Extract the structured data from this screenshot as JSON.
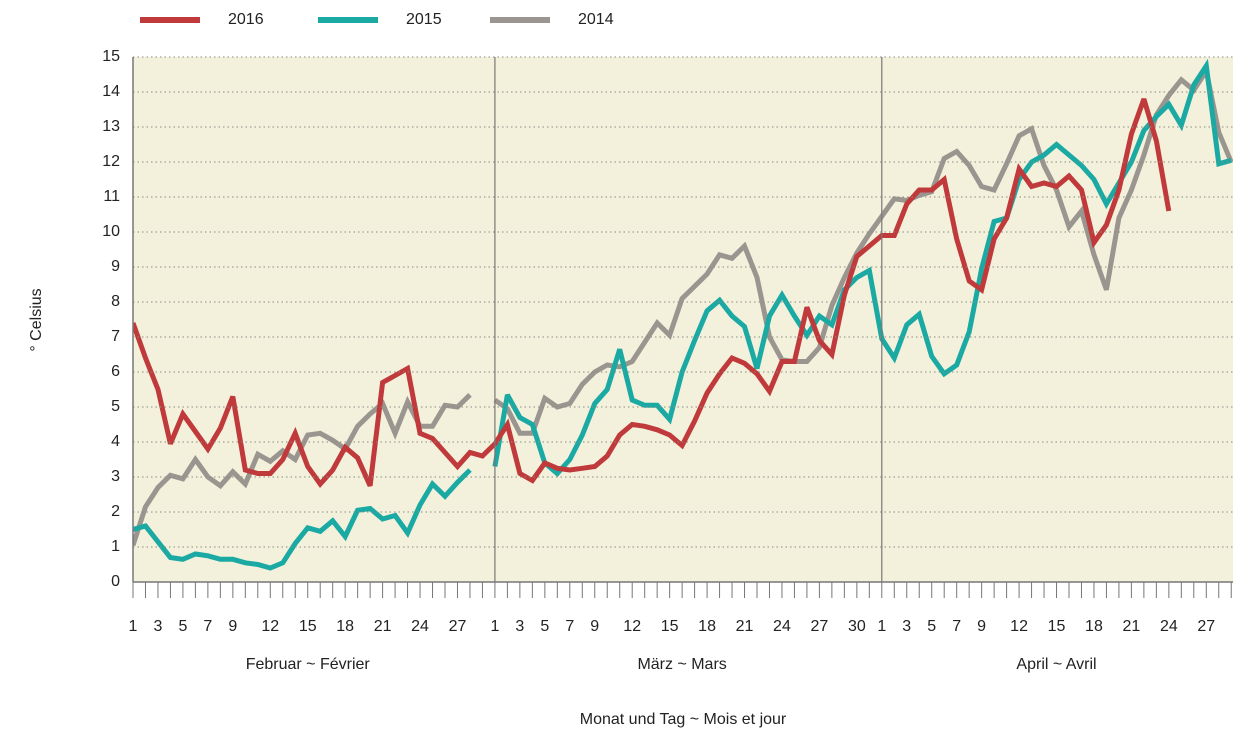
{
  "chart_data": {
    "type": "line",
    "ylabel": "° Celsius",
    "xlabel": "Monat und Tag ~ Mois et jour",
    "months": [
      "Februar ~ Février",
      "März ~ Mars",
      "April ~ Avril"
    ],
    "categories": [
      "1",
      null,
      "3",
      null,
      "5",
      null,
      "7",
      null,
      "9",
      null,
      null,
      "12",
      null,
      null,
      "15",
      null,
      null,
      "18",
      null,
      null,
      "21",
      null,
      null,
      "24",
      null,
      null,
      "27",
      null,
      null,
      "1",
      null,
      "3",
      null,
      "5",
      null,
      "7",
      null,
      "9",
      null,
      null,
      "12",
      null,
      null,
      "15",
      null,
      null,
      "18",
      null,
      null,
      "21",
      null,
      null,
      "24",
      null,
      null,
      "27",
      null,
      null,
      "30",
      null,
      "1",
      null,
      "3",
      null,
      "5",
      null,
      "7",
      null,
      "9",
      null,
      null,
      "12",
      null,
      null,
      "15",
      null,
      null,
      "18",
      null,
      null,
      "21",
      null,
      null,
      "24",
      null,
      null,
      "27",
      null,
      null
    ],
    "ylim": [
      0,
      15
    ],
    "yticks": [
      0,
      1,
      2,
      3,
      4,
      5,
      6,
      7,
      8,
      9,
      10,
      11,
      12,
      13,
      14,
      15
    ],
    "grid": true,
    "series": [
      {
        "name": "2016",
        "color": "#c0393b",
        "values": [
          7.4,
          6.4,
          5.5,
          3.95,
          4.8,
          4.3,
          3.8,
          4.4,
          5.3,
          3.2,
          3.1,
          3.1,
          3.5,
          4.25,
          3.3,
          2.8,
          3.2,
          3.85,
          3.55,
          2.75,
          5.7,
          5.9,
          6.1,
          4.25,
          4.1,
          3.7,
          3.3,
          3.7,
          3.6,
          3.95,
          4.5,
          3.1,
          2.9,
          3.4,
          3.25,
          3.2,
          3.25,
          3.3,
          3.6,
          4.2,
          4.5,
          4.45,
          4.35,
          4.2,
          3.9,
          4.6,
          5.4,
          5.95,
          6.4,
          6.25,
          5.95,
          5.45,
          6.3,
          6.3,
          7.85,
          6.9,
          6.5,
          8.2,
          9.3,
          9.6,
          9.9,
          9.9,
          10.8,
          11.2,
          11.2,
          11.5,
          9.8,
          8.6,
          8.35,
          9.8,
          10.4,
          11.8,
          11.3,
          11.4,
          11.3,
          11.6,
          11.2,
          9.7,
          10.2,
          11.2,
          12.8,
          13.8,
          12.6,
          10.6,
          null,
          null,
          null,
          null,
          null
        ]
      },
      {
        "name": "2015",
        "color": "#1aa9a3",
        "values": [
          1.5,
          1.6,
          1.15,
          0.7,
          0.65,
          0.8,
          0.75,
          0.65,
          0.65,
          0.55,
          0.5,
          0.4,
          0.55,
          1.1,
          1.55,
          1.45,
          1.75,
          1.3,
          2.05,
          2.1,
          1.8,
          1.9,
          1.4,
          2.2,
          2.8,
          2.45,
          2.85,
          3.2,
          null,
          3.3,
          5.35,
          4.7,
          4.5,
          3.4,
          3.1,
          3.5,
          4.2,
          5.1,
          5.5,
          6.65,
          5.2,
          5.05,
          5.05,
          4.65,
          6.0,
          6.9,
          7.75,
          8.05,
          7.6,
          7.3,
          6.1,
          7.6,
          8.2,
          7.6,
          7.05,
          7.6,
          7.35,
          8.35,
          8.7,
          8.9,
          6.95,
          6.4,
          7.35,
          7.65,
          6.45,
          5.95,
          6.2,
          7.15,
          8.95,
          10.3,
          10.4,
          11.5,
          12.0,
          12.2,
          12.5,
          12.2,
          11.9,
          11.5,
          10.8,
          11.4,
          12.0,
          12.9,
          13.3,
          13.65,
          13.05,
          14.2,
          14.75,
          11.95,
          12.05
        ]
      },
      {
        "name": "2014",
        "color": "#9b9590",
        "values": [
          1.05,
          2.15,
          2.7,
          3.05,
          2.95,
          3.5,
          3.0,
          2.75,
          3.15,
          2.8,
          3.65,
          3.45,
          3.75,
          3.5,
          4.2,
          4.25,
          4.05,
          3.8,
          4.45,
          4.8,
          5.1,
          4.25,
          5.15,
          4.45,
          4.45,
          5.05,
          5.0,
          5.35,
          null,
          5.2,
          4.95,
          4.25,
          4.25,
          5.25,
          5.0,
          5.1,
          5.65,
          6.0,
          6.2,
          6.15,
          6.3,
          6.85,
          7.4,
          7.05,
          8.1,
          8.45,
          8.8,
          9.35,
          9.25,
          9.6,
          8.7,
          7.0,
          6.35,
          6.3,
          6.3,
          6.7,
          7.9,
          8.7,
          9.4,
          9.95,
          10.45,
          10.95,
          10.9,
          11.05,
          11.15,
          12.1,
          12.3,
          11.9,
          11.3,
          11.2,
          11.95,
          12.75,
          12.95,
          11.9,
          11.2,
          10.15,
          10.6,
          9.35,
          8.35,
          10.4,
          11.2,
          12.2,
          13.35,
          13.9,
          14.35,
          14.05,
          14.6,
          12.85,
          12.0
        ]
      }
    ]
  }
}
